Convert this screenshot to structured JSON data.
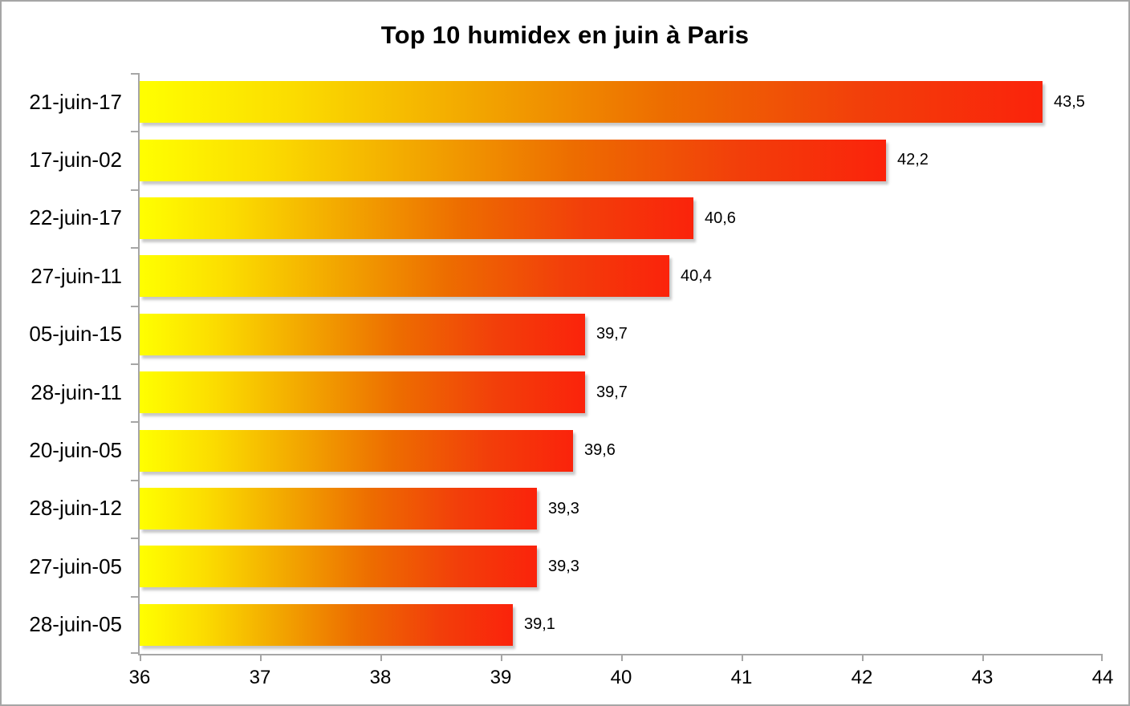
{
  "chart_data": {
    "type": "bar",
    "orientation": "horizontal",
    "title": "Top 10 humidex en juin à Paris",
    "categories": [
      "21-juin-17",
      "17-juin-02",
      "22-juin-17",
      "27-juin-11",
      "05-juin-15",
      "28-juin-11",
      "20-juin-05",
      "28-juin-12",
      "27-juin-05",
      "28-juin-05"
    ],
    "values": [
      43.5,
      42.2,
      40.6,
      40.4,
      39.7,
      39.7,
      39.6,
      39.3,
      39.3,
      39.1
    ],
    "value_labels": [
      "43,5",
      "42,2",
      "40,6",
      "40,4",
      "39,7",
      "39,7",
      "39,6",
      "39,3",
      "39,3",
      "39,1"
    ],
    "xlabel": "",
    "ylabel": "",
    "xlim": [
      36,
      44
    ],
    "x_ticks": [
      "36",
      "37",
      "38",
      "39",
      "40",
      "41",
      "42",
      "43",
      "44"
    ],
    "grid": false,
    "legend": false,
    "colors": {
      "bar_gradient_stops": [
        {
          "color": "#FFFF00",
          "pos": 0
        },
        {
          "color": "#FBDC00",
          "pos": 17
        },
        {
          "color": "#F2A400",
          "pos": 38
        },
        {
          "color": "#ED6D00",
          "pos": 58
        },
        {
          "color": "#F23F0A",
          "pos": 80
        },
        {
          "color": "#FB230B",
          "pos": 100
        }
      ],
      "axis": "#A6A6A6",
      "text": "#000000",
      "background": "#FFFFFF"
    }
  }
}
